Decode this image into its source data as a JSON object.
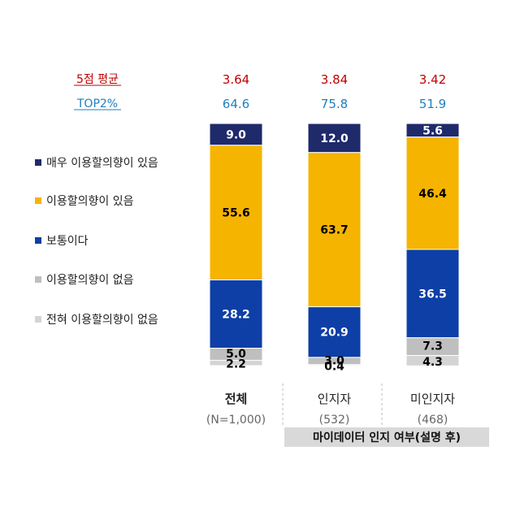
{
  "chart_data": {
    "type": "bar",
    "stacked": true,
    "orientation": "vertical",
    "categories": [
      "전체",
      "인지자",
      "미인지자"
    ],
    "category_n": [
      "(N=1,000)",
      "(532)",
      "(468)"
    ],
    "bold_categories": [
      "전체"
    ],
    "series": [
      {
        "name": "매우 이용할의향이 있음",
        "color": "#1f2a6b",
        "label_color": "#ffffff",
        "values": [
          9.0,
          12.0,
          5.6
        ]
      },
      {
        "name": "이용할의향이 있음",
        "color": "#f5b400",
        "label_color": "#000000",
        "values": [
          55.6,
          63.7,
          46.4
        ]
      },
      {
        "name": "보통이다",
        "color": "#0d3fa6",
        "label_color": "#ffffff",
        "values": [
          28.2,
          20.9,
          36.5
        ]
      },
      {
        "name": "이용할의향이 없음",
        "color": "#bfbfbf",
        "label_color": "#000000",
        "values": [
          5.0,
          3.0,
          7.3
        ]
      },
      {
        "name": "전혀 이용할의향이 없음",
        "color": "#d4d4d4",
        "label_color": "#000000",
        "values": [
          2.2,
          0.4,
          4.3
        ]
      }
    ],
    "stats": [
      {
        "label": "5점 평균",
        "color": "#c00000",
        "values": [
          "3.64",
          "3.84",
          "3.42"
        ]
      },
      {
        "label": "TOP2%",
        "color": "#1f7fbf",
        "values": [
          "64.6",
          "75.8",
          "51.9"
        ]
      }
    ],
    "group_label": "마이데이터 인지 여부(설명 후)",
    "ylim": [
      0,
      100
    ],
    "legend_position": "left"
  }
}
